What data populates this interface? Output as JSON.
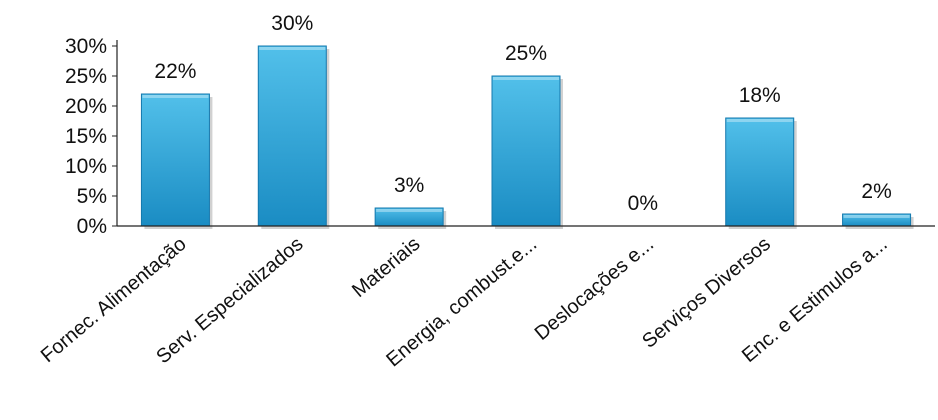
{
  "chart_data": {
    "type": "bar",
    "categories": [
      "Fornec. Alimentação",
      "Serv. Especializados",
      "Materiais",
      "Energia, combust.e...",
      "Deslocações e...",
      "Serviços Diversos",
      "Enc. e Estimulos a..."
    ],
    "values": [
      22,
      30,
      3,
      25,
      0,
      18,
      2
    ],
    "value_labels": [
      "22%",
      "30%",
      "3%",
      "25%",
      "0%",
      "18%",
      "2%"
    ],
    "y_ticks": [
      "0%",
      "5%",
      "10%",
      "15%",
      "20%",
      "25%",
      "30%"
    ],
    "y_tick_values": [
      0,
      5,
      10,
      15,
      20,
      25,
      30
    ],
    "ylim": [
      0,
      30
    ],
    "grid": false,
    "legend": "none",
    "title": "",
    "xlabel": "",
    "ylabel": "",
    "colors": {
      "bar_top": "#52c0ea",
      "bar_bottom": "#1a8cc3",
      "bar_stroke": "#1478ad",
      "axis": "#222222"
    }
  }
}
